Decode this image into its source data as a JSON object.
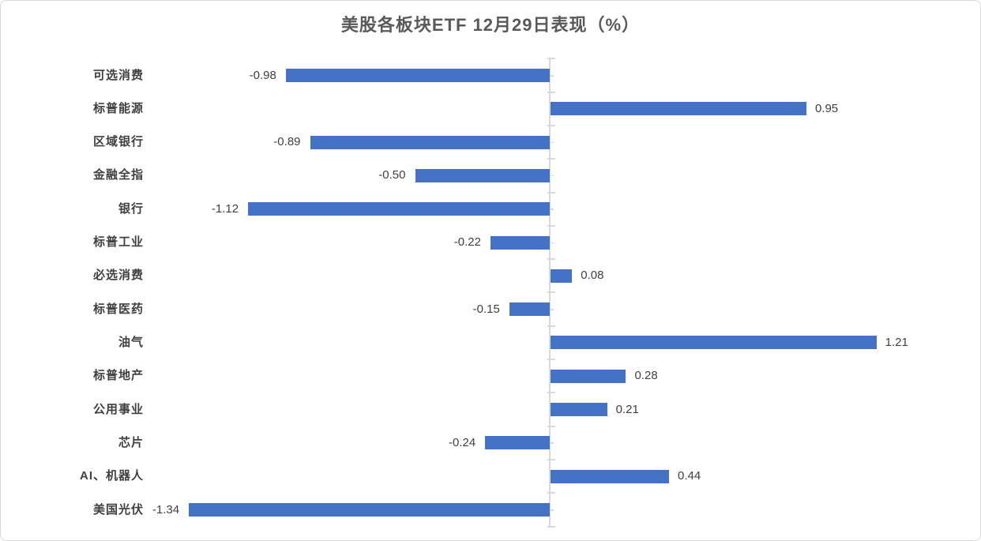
{
  "window": {
    "title": "美股各板块ETF 12月29日表现（%）"
  },
  "chart_data": {
    "type": "bar",
    "orientation": "horizontal",
    "title": "美股各板块ETF 12月29日表现（%）",
    "categories": [
      "可选消费",
      "标普能源",
      "区域银行",
      "金融全指",
      "银行",
      "标普工业",
      "必选消费",
      "标普医药",
      "油气",
      "标普地产",
      "公用事业",
      "芯片",
      "AI、机器人",
      "美国光伏"
    ],
    "values": [
      -0.98,
      0.95,
      -0.89,
      -0.5,
      -1.12,
      -0.22,
      0.08,
      -0.15,
      1.21,
      0.28,
      0.21,
      -0.24,
      0.44,
      -1.34
    ],
    "value_labels": [
      "-0.98",
      "0.95",
      "-0.89",
      "-0.50",
      "-1.12",
      "-0.22",
      "0.08",
      "-0.15",
      "1.21",
      "0.28",
      "0.21",
      "-0.24",
      "0.44",
      "-1.34"
    ],
    "xlabel": "",
    "ylabel": "",
    "xlim": [
      -1.4,
      1.4
    ],
    "grid": false,
    "legend": false,
    "bar_color": "#4472C4",
    "axis_color": "#D9D9D9",
    "label_color": "#404040",
    "title_color": "#595959"
  }
}
